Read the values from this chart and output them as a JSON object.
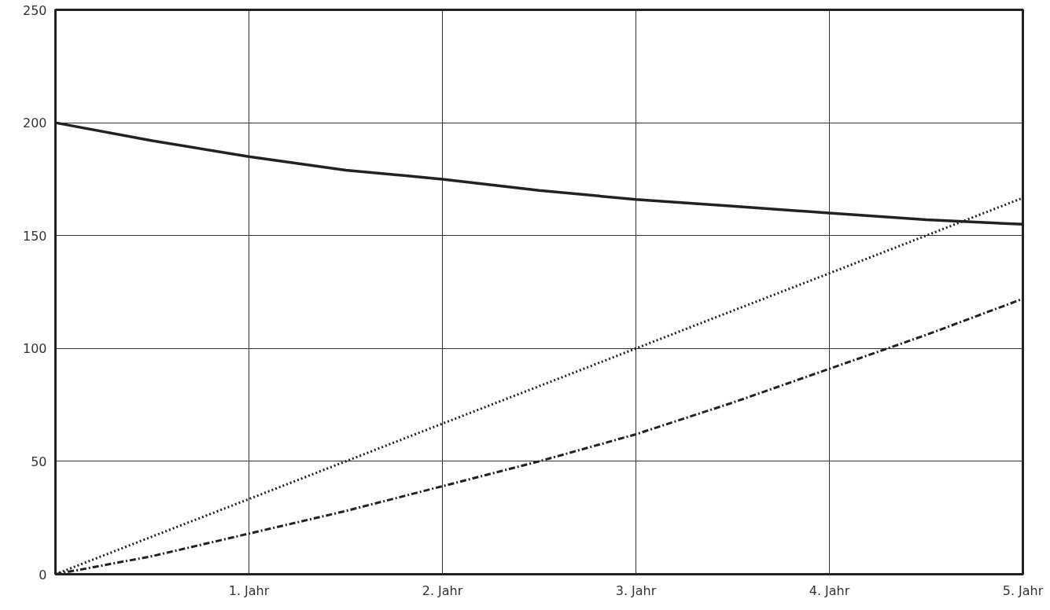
{
  "chart_data": {
    "type": "line",
    "x": [
      0,
      0.5,
      1,
      1.5,
      2,
      2.5,
      3,
      3.5,
      4,
      4.5,
      5
    ],
    "series": [
      {
        "color": "#222222",
        "line_style": "solid",
        "values": [
          200,
          192,
          185,
          179,
          175,
          170,
          166,
          163,
          160,
          157,
          155
        ]
      },
      {
        "color": "#222222",
        "line_style": "dotted",
        "values": [
          0,
          16.7,
          33.3,
          50,
          66.7,
          83.3,
          100,
          116.7,
          133.3,
          150,
          166.7
        ]
      },
      {
        "color": "#222222",
        "line_style": "dashdot",
        "values": [
          0,
          8,
          18,
          28,
          39,
          50,
          62,
          76,
          91,
          106,
          122
        ]
      }
    ],
    "xlim": [
      0,
      5
    ],
    "ylim": [
      0,
      250
    ],
    "xticks": [
      {
        "value": 1,
        "label": "1. Jahr"
      },
      {
        "value": 2,
        "label": "2. Jahr"
      },
      {
        "value": 3,
        "label": "3. Jahr"
      },
      {
        "value": 4,
        "label": "4. Jahr"
      },
      {
        "value": 5,
        "label": "5. Jahr"
      }
    ],
    "yticks": [
      0,
      50,
      100,
      150,
      200,
      250
    ],
    "grid": true,
    "marker": "none"
  }
}
